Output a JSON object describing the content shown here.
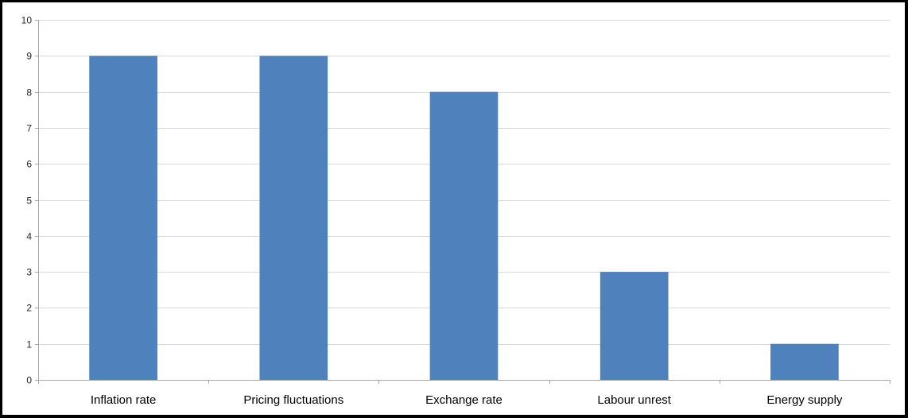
{
  "chart_data": {
    "type": "bar",
    "title": "",
    "xlabel": "",
    "ylabel": "",
    "categories": [
      "Inflation rate",
      "Pricing fluctuations",
      "Exchange rate",
      "Labour unrest",
      "Energy supply"
    ],
    "values": [
      9,
      9,
      8,
      3,
      1
    ],
    "ylim": [
      0,
      10
    ],
    "yticks": [
      "0",
      "1",
      "2",
      "3",
      "4",
      "5",
      "6",
      "7",
      "8",
      "9",
      "10"
    ],
    "grid": true,
    "legend": "none",
    "bar_color": "#4F81BD",
    "gridline_color": "#D9D9D9",
    "axis_color": "#A6A6A6"
  }
}
